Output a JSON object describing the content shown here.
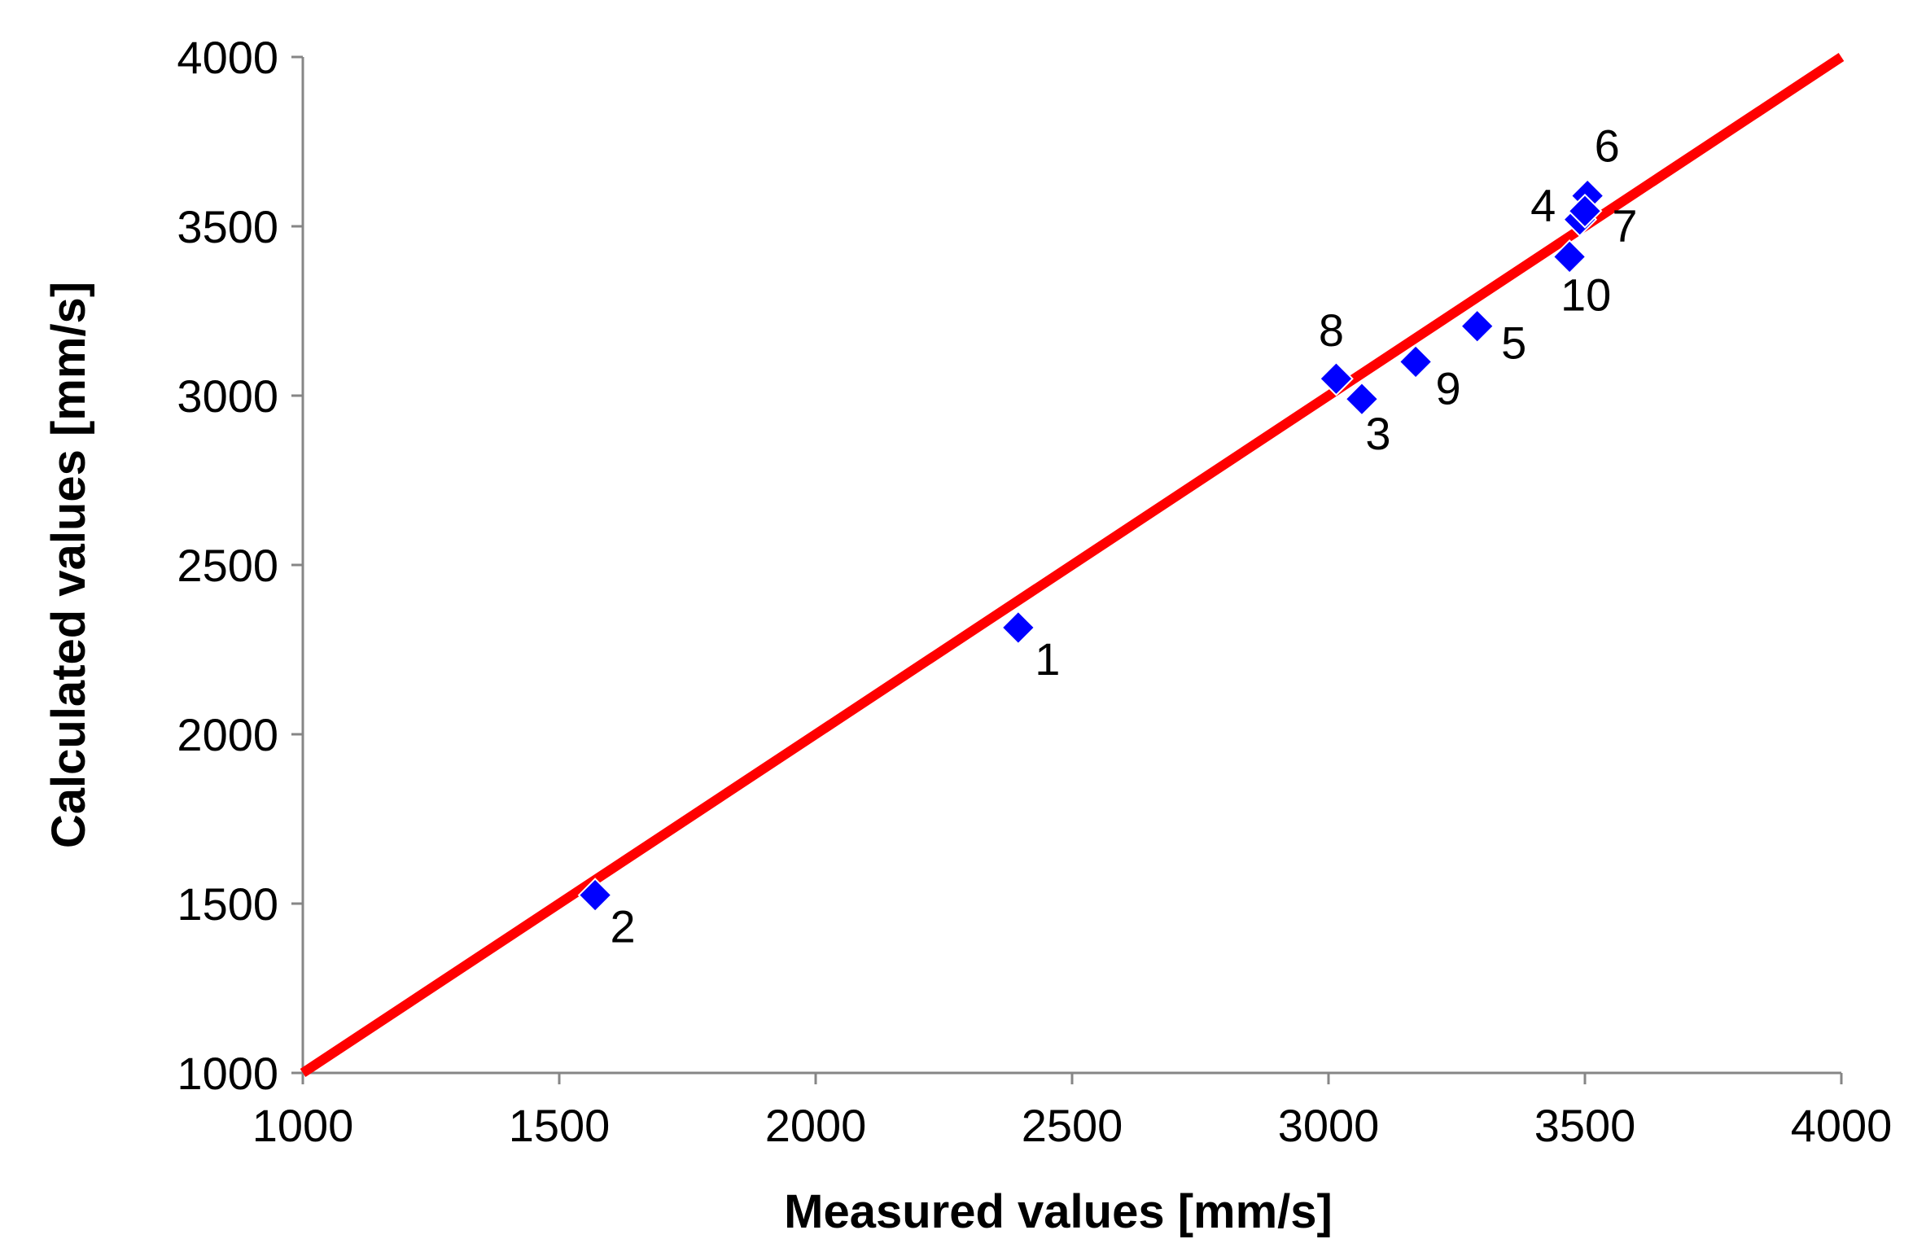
{
  "chart_data": {
    "type": "scatter",
    "title": "",
    "xlabel": "Measured values [mm/s]",
    "ylabel": "Calculated values [mm/s]",
    "xlim": [
      1000,
      4000
    ],
    "ylim": [
      1000,
      4000
    ],
    "x_ticks": [
      "1000",
      "1500",
      "2000",
      "2500",
      "3000",
      "3500",
      "4000"
    ],
    "y_ticks": [
      "1000",
      "1500",
      "2000",
      "2500",
      "3000",
      "3500",
      "4000"
    ],
    "grid": false,
    "legend": "none",
    "marker": "diamond",
    "marker_color": "#0000FF",
    "line_color": "#FF0000",
    "reference_line": {
      "x": [
        1000,
        4000
      ],
      "y": [
        1000,
        4000
      ]
    },
    "points": [
      {
        "label": "1",
        "x": 2395,
        "y": 2315
      },
      {
        "label": "2",
        "x": 1570,
        "y": 1525
      },
      {
        "label": "3",
        "x": 3065,
        "y": 2990
      },
      {
        "label": "4",
        "x": 3490,
        "y": 3520
      },
      {
        "label": "5",
        "x": 3290,
        "y": 3205
      },
      {
        "label": "6",
        "x": 3505,
        "y": 3590
      },
      {
        "label": "7",
        "x": 3500,
        "y": 3545
      },
      {
        "label": "8",
        "x": 3015,
        "y": 3050
      },
      {
        "label": "9",
        "x": 3170,
        "y": 3100
      },
      {
        "label": "10",
        "x": 3470,
        "y": 3410
      }
    ]
  }
}
